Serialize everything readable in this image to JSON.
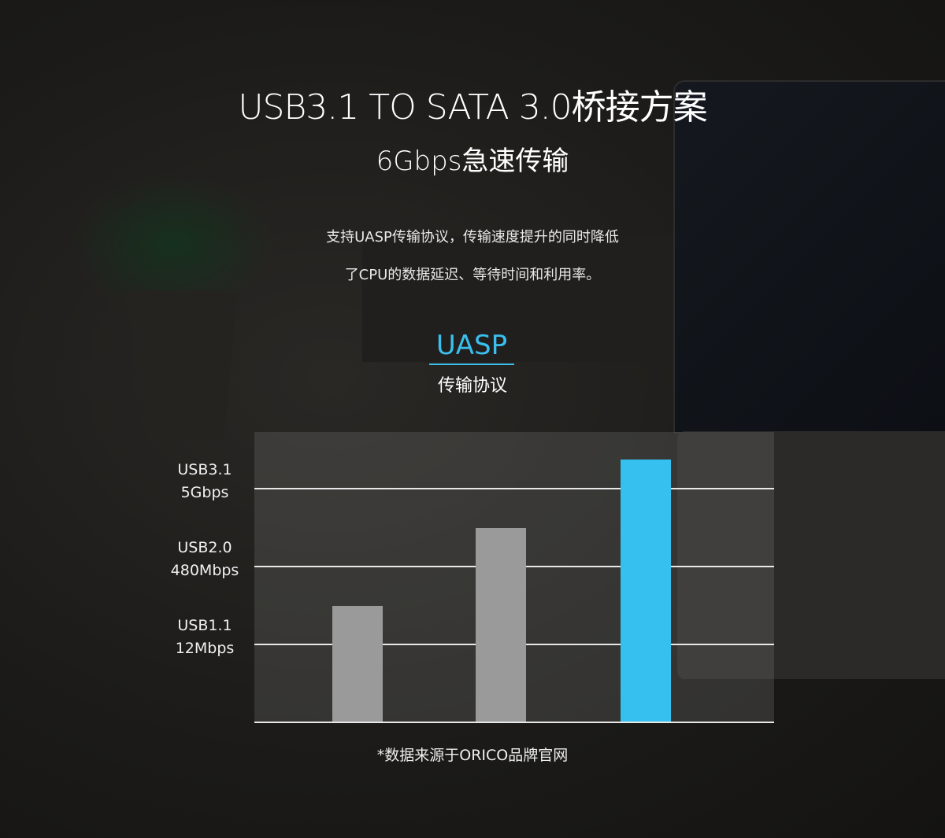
{
  "header": {
    "title": "USB3.1 TO SATA 3.0桥接方案",
    "subtitle": "6Gbps急速传输",
    "description_lines": [
      "支持UASP传输协议，传输速度提升的同时降低",
      "了CPU的数据延迟、等待时间和利用率。"
    ],
    "badge": "UASP",
    "badge_caption": "传输协议"
  },
  "colors": {
    "accent": "#35c0f0",
    "bar_gray": "#9a9a9a",
    "grid": "#e8e8e8"
  },
  "chart_data": {
    "type": "bar",
    "categories": [
      "",
      "",
      ""
    ],
    "values": [
      1.5,
      2.5,
      3.38
    ],
    "bar_colors": [
      "#9a9a9a",
      "#9a9a9a",
      "#35c0f0"
    ],
    "y_ticks": [
      {
        "level": 1,
        "line1": "USB1.1",
        "line2": "12Mbps"
      },
      {
        "level": 2,
        "line1": "USB2.0",
        "line2": "480Mbps"
      },
      {
        "level": 3,
        "line1": "USB3.1",
        "line2": "5Gbps"
      }
    ],
    "ylim": [
      0,
      3.73
    ],
    "grid": true,
    "legend": "none",
    "title": "",
    "xlabel": "",
    "ylabel": ""
  },
  "footnote": "*数据来源于ORICO品牌官网"
}
